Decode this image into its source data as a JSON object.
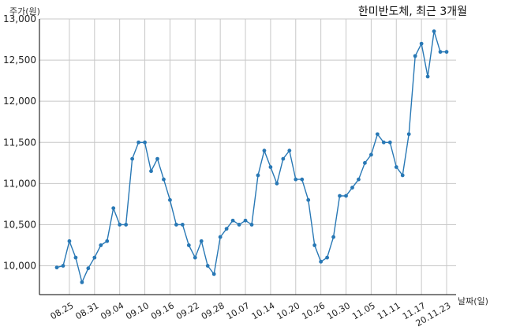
{
  "chart_data": {
    "type": "line",
    "title": "한미반도체, 최근 3개월",
    "xlabel": "날짜(일)",
    "ylabel": "주가(원)",
    "ylim": [
      9650,
      13000
    ],
    "grid": true,
    "yticks": [
      10000,
      10500,
      11000,
      11500,
      12000,
      12500,
      13000
    ],
    "ytick_labels": [
      "10,000",
      "10,500",
      "11,000",
      "11,500",
      "12,000",
      "12,500",
      "13,000"
    ],
    "xtick_labels": [
      "08.25",
      "08.31",
      "09.04",
      "09.10",
      "09.16",
      "09.22",
      "09.28",
      "10.07",
      "10.14",
      "10.20",
      "10.26",
      "10.30",
      "11.05",
      "11.11",
      "11.17",
      "20.11.23"
    ],
    "xtick_positions": [
      2,
      6,
      10,
      14,
      18,
      22,
      26,
      30,
      34,
      38,
      42,
      46,
      50,
      54,
      58,
      62
    ],
    "x": [
      0,
      1,
      2,
      3,
      4,
      5,
      6,
      7,
      8,
      9,
      10,
      11,
      12,
      13,
      14,
      15,
      16,
      17,
      18,
      19,
      20,
      21,
      22,
      23,
      24,
      25,
      26,
      27,
      28,
      29,
      30,
      31,
      32,
      33,
      34,
      35,
      36,
      37,
      38,
      39,
      40,
      41,
      42,
      43,
      44,
      45,
      46,
      47,
      48,
      49,
      50,
      51,
      52,
      53,
      54,
      55,
      56,
      57,
      58,
      59,
      60,
      61,
      62
    ],
    "series": [
      {
        "color": "#2878b5",
        "values": [
          9980,
          10000,
          10300,
          10100,
          9800,
          9970,
          10100,
          10250,
          10300,
          10700,
          10500,
          10500,
          11300,
          11500,
          11500,
          11150,
          11300,
          11050,
          10800,
          10500,
          10500,
          10250,
          10100,
          10300,
          10000,
          9900,
          10350,
          10450,
          10550,
          10500,
          10550,
          10500,
          11100,
          11400,
          11200,
          11000,
          11300,
          11400,
          11050,
          11050,
          10800,
          10250,
          10050,
          10100,
          10350,
          10850,
          10850,
          10950,
          11050,
          11250,
          11350,
          11600,
          11500,
          11500,
          11200,
          11100,
          11600,
          12550,
          12700,
          12300,
          12850,
          12600,
          12600
        ]
      }
    ]
  }
}
